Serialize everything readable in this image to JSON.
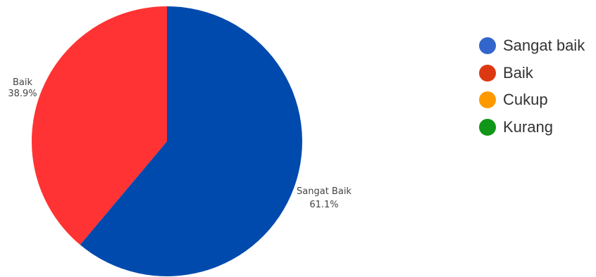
{
  "chart_data": {
    "type": "pie",
    "slices": [
      {
        "label": "Sangat Baik",
        "value": 61.1,
        "display": "61.1%",
        "color": "#004AAD"
      },
      {
        "label": "Baik",
        "value": 38.9,
        "display": "38.9%",
        "color": "#FF3333"
      }
    ],
    "legend": {
      "placement": "right",
      "entries": [
        {
          "label": "Sangat baik",
          "color": "#3366CC"
        },
        {
          "label": "Baik",
          "color": "#DC3912"
        },
        {
          "label": "Cukup",
          "color": "#FF9900"
        },
        {
          "label": "Kurang",
          "color": "#109618"
        }
      ]
    }
  }
}
